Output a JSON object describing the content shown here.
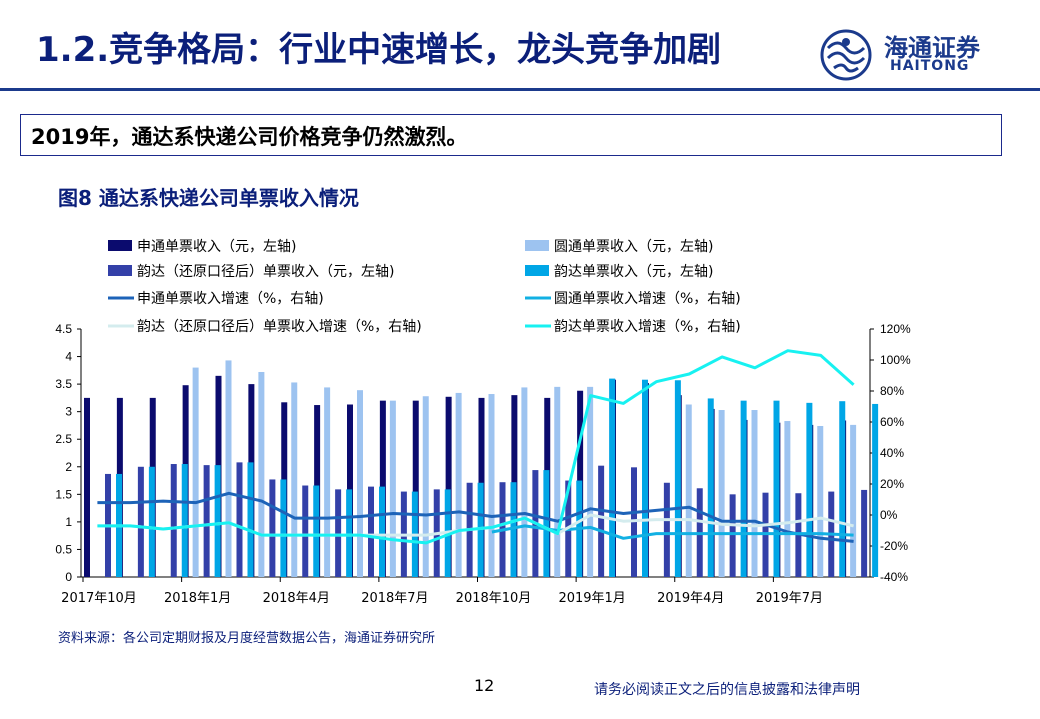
{
  "header": {
    "title": "1.2.竞争格局：行业中速增长，龙头竞争加剧"
  },
  "logo": {
    "cn": "海通证券",
    "en": "HAITONG"
  },
  "summary": {
    "text": "2019年，通达系快递公司价格竞争仍然激烈。"
  },
  "figure": {
    "title": "图8 通达系快递公司单票收入情况"
  },
  "footer": {
    "source": "资料来源：各公司定期财报及月度经营数据公告，海通证券研究所",
    "page_number": "12",
    "disclaimer": "请务必阅读正文之后的信息披露和法律声明"
  },
  "colors": {
    "brand": "#1b3a8c",
    "zto_bar": "#0b0b6e",
    "yto_bar": "#9dc3f0",
    "yunda_adj_bar": "#3340a8",
    "yunda_bar": "#00a6e6",
    "zto_line": "#1d63b8",
    "yto_line": "#11b0e3",
    "yunda_adj_line": "#d4ecee",
    "yunda_line": "#17f1f1"
  },
  "chart_data": {
    "type": "bar",
    "categories": [
      "2017-10",
      "2017-11",
      "2017-12",
      "2018-01",
      "2018-02",
      "2018-03",
      "2018-04",
      "2018-05",
      "2018-06",
      "2018-07",
      "2018-08",
      "2018-09",
      "2018-10",
      "2018-11",
      "2018-12",
      "2019-01",
      "2019-02",
      "2019-03",
      "2019-04",
      "2019-05",
      "2019-06",
      "2019-07",
      "2019-08",
      "2019-09"
    ],
    "x_tick_labels": [
      "2017年10月",
      "2018年1月",
      "2018年4月",
      "2018年7月",
      "2018年10月",
      "2019年1月",
      "2019年4月",
      "2019年7月"
    ],
    "x_tick_indices": [
      0,
      3,
      6,
      9,
      12,
      15,
      18,
      21
    ],
    "y_left": {
      "lim": [
        0,
        4.5
      ],
      "ticks": [
        0,
        0.5,
        1,
        1.5,
        2,
        2.5,
        3,
        3.5,
        4,
        4.5
      ],
      "tick_labels": [
        "0",
        "0.5",
        "1",
        "1.5",
        "2",
        "2.5",
        "3",
        "3.5",
        "4",
        "4.5"
      ]
    },
    "y_right": {
      "lim": [
        -40,
        120
      ],
      "ticks": [
        -40,
        -20,
        0,
        20,
        40,
        60,
        80,
        100,
        120
      ],
      "tick_labels": [
        "-40%",
        "-20%",
        "0%",
        "20%",
        "40%",
        "60%",
        "80%",
        "100%",
        "120%"
      ]
    },
    "legend_labels": [
      "申通单票收入（元，左轴)",
      "圆通单票收入（元，左轴)",
      "韵达（还原口径后）单票收入（元，左轴)",
      "韵达单票收入（元，左轴)",
      "申通单票收入增速（%，右轴)",
      "圆通单票收入增速（%，右轴)",
      "韵达（还原口径后）单票收入增速（%，右轴)",
      "韵达单票收入增速（%，右轴)"
    ],
    "bar_series": [
      {
        "name": "申通单票收入（元，左轴)",
        "color_key": "zto_bar",
        "values": [
          3.25,
          3.25,
          3.25,
          3.48,
          3.65,
          3.5,
          3.17,
          3.12,
          3.13,
          3.2,
          3.2,
          3.27,
          3.25,
          3.3,
          3.25,
          3.38,
          3.58,
          3.52,
          3.3,
          3.05,
          2.85,
          2.8,
          2.76,
          2.84
        ]
      },
      {
        "name": "圆通单票收入（元，左轴)",
        "color_key": "yto_bar",
        "values": [
          null,
          null,
          null,
          3.8,
          3.93,
          3.72,
          3.53,
          3.44,
          3.39,
          3.2,
          3.28,
          3.34,
          3.32,
          3.44,
          3.45,
          3.45,
          null,
          null,
          3.13,
          3.03,
          3.03,
          2.83,
          2.74,
          2.76
        ]
      },
      {
        "name": "韵达（还原口径后）单票收入（元，左轴)",
        "color_key": "yunda_adj_bar",
        "values": [
          1.87,
          2.0,
          2.05,
          2.03,
          2.08,
          1.77,
          1.66,
          1.59,
          1.64,
          1.55,
          1.59,
          1.71,
          1.72,
          1.94,
          1.75,
          2.02,
          1.99,
          1.71,
          1.61,
          1.5,
          1.53,
          1.52,
          1.55,
          1.58
        ]
      },
      {
        "name": "韵达单票收入（元，左轴)",
        "color_key": "yunda_bar",
        "values": [
          1.87,
          2.0,
          2.05,
          2.03,
          2.08,
          1.77,
          1.66,
          1.59,
          1.64,
          1.55,
          1.59,
          1.71,
          1.72,
          1.94,
          1.75,
          3.6,
          3.58,
          3.57,
          3.24,
          3.2,
          3.2,
          3.16,
          3.19,
          3.14
        ]
      }
    ],
    "line_series": [
      {
        "name": "申通单票收入增速（%，右轴)",
        "color_key": "zto_line",
        "values": [
          8,
          8,
          9,
          8,
          14,
          9,
          -2,
          -2,
          -1,
          1,
          0,
          2,
          -1,
          1,
          -4,
          4,
          1,
          3,
          5,
          -4,
          -4,
          -11,
          -15,
          -17
        ]
      },
      {
        "name": "圆通单票收入增速（%，右轴)",
        "color_key": "yto_line",
        "values": [
          null,
          null,
          null,
          null,
          null,
          null,
          null,
          null,
          null,
          null,
          null,
          null,
          -11,
          -7,
          -10,
          -8,
          -15,
          -12,
          -12,
          -12,
          -12,
          -12,
          -12,
          -13
        ]
      },
      {
        "name": "韵达（还原口径后）单票收入增速（%，右轴)",
        "color_key": "yunda_adj_line",
        "values": [
          -7,
          -7,
          -9,
          -7,
          -5,
          -13,
          -13,
          -13,
          -13,
          -13,
          -13,
          -10,
          -8,
          -2,
          -12,
          0,
          -4,
          -3,
          -3,
          -6,
          -7,
          -5,
          -2,
          -7
        ]
      },
      {
        "name": "韵达单票收入增速（%，右轴)",
        "color_key": "yunda_line",
        "values": [
          -7,
          -7,
          -9,
          -7,
          -5,
          -13,
          -13,
          -13,
          -13,
          -16,
          -18,
          -10,
          -8,
          -2,
          -12,
          77,
          72,
          86,
          91,
          102,
          95,
          106,
          103,
          84
        ]
      }
    ]
  }
}
